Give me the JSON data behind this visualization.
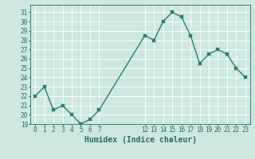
{
  "x": [
    0,
    1,
    2,
    3,
    4,
    5,
    6,
    7,
    12,
    13,
    14,
    15,
    16,
    17,
    18,
    19,
    20,
    21,
    22,
    23
  ],
  "y": [
    22,
    23,
    20.5,
    21,
    20,
    19,
    19.5,
    20.5,
    28.5,
    28,
    30,
    31,
    30.5,
    28.5,
    25.5,
    26.5,
    27,
    26.5,
    25,
    24
  ],
  "xlabel": "Humidex (Indice chaleur)",
  "xlim": [
    -0.5,
    23.5
  ],
  "ylim": [
    19,
    31.8
  ],
  "yticks": [
    19,
    20,
    21,
    22,
    23,
    24,
    25,
    26,
    27,
    28,
    29,
    30,
    31
  ],
  "xticks": [
    0,
    1,
    2,
    3,
    4,
    5,
    6,
    7,
    12,
    13,
    14,
    15,
    16,
    17,
    18,
    19,
    20,
    21,
    22,
    23
  ],
  "line_color": "#2e7d6e",
  "marker_color": "#2e7d6e",
  "bg_color": "#cce8e0",
  "grid_color": "#ffffff",
  "tick_label_color": "#2e6a5e",
  "xlabel_fontsize": 7,
  "tick_fontsize": 5.5,
  "line_width": 1.0,
  "marker_size": 2.5
}
